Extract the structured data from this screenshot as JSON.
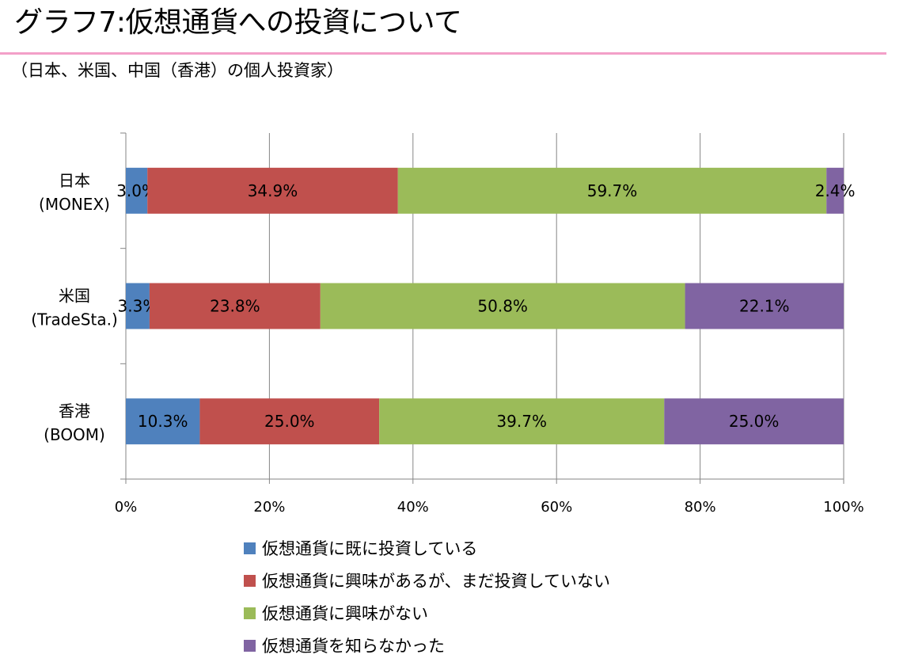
{
  "header": {
    "title": "グラフ7:仮想通貨への投資について",
    "subtitle": "（日本、米国、中国（香港）の個人投資家）"
  },
  "chart_data": {
    "type": "bar",
    "orientation": "horizontal",
    "stacked": "percent",
    "categories": [
      {
        "line1": "日本",
        "line2": "(MONEX)"
      },
      {
        "line1": "米国",
        "line2": "(TradeSta.)"
      },
      {
        "line1": "香港",
        "line2": "(BOOM)"
      }
    ],
    "series": [
      {
        "name": "仮想通貨に既に投資している",
        "color": "#4f81bd",
        "values": [
          3.0,
          3.3,
          10.3
        ],
        "labels": [
          "3.0%",
          "3.3%",
          "10.3%"
        ]
      },
      {
        "name": "仮想通貨に興味があるが、まだ投資していない",
        "color": "#c0504d",
        "values": [
          34.9,
          23.8,
          25.0
        ],
        "labels": [
          "34.9%",
          "23.8%",
          "25.0%"
        ]
      },
      {
        "name": "仮想通貨に興味がない",
        "color": "#9bbb59",
        "values": [
          59.7,
          50.8,
          39.7
        ],
        "labels": [
          "59.7%",
          "50.8%",
          "39.7%"
        ]
      },
      {
        "name": "仮想通貨を知らなかった",
        "color": "#8064a2",
        "values": [
          2.4,
          22.1,
          25.0
        ],
        "labels": [
          "2.4%",
          "22.1%",
          "25.0%"
        ]
      }
    ],
    "xlim": [
      0,
      100
    ],
    "xticks": [
      0,
      20,
      40,
      60,
      80,
      100
    ],
    "xtick_labels": [
      "0%",
      "20%",
      "40%",
      "60%",
      "80%",
      "100%"
    ],
    "grid": true,
    "legend_position": "bottom"
  }
}
